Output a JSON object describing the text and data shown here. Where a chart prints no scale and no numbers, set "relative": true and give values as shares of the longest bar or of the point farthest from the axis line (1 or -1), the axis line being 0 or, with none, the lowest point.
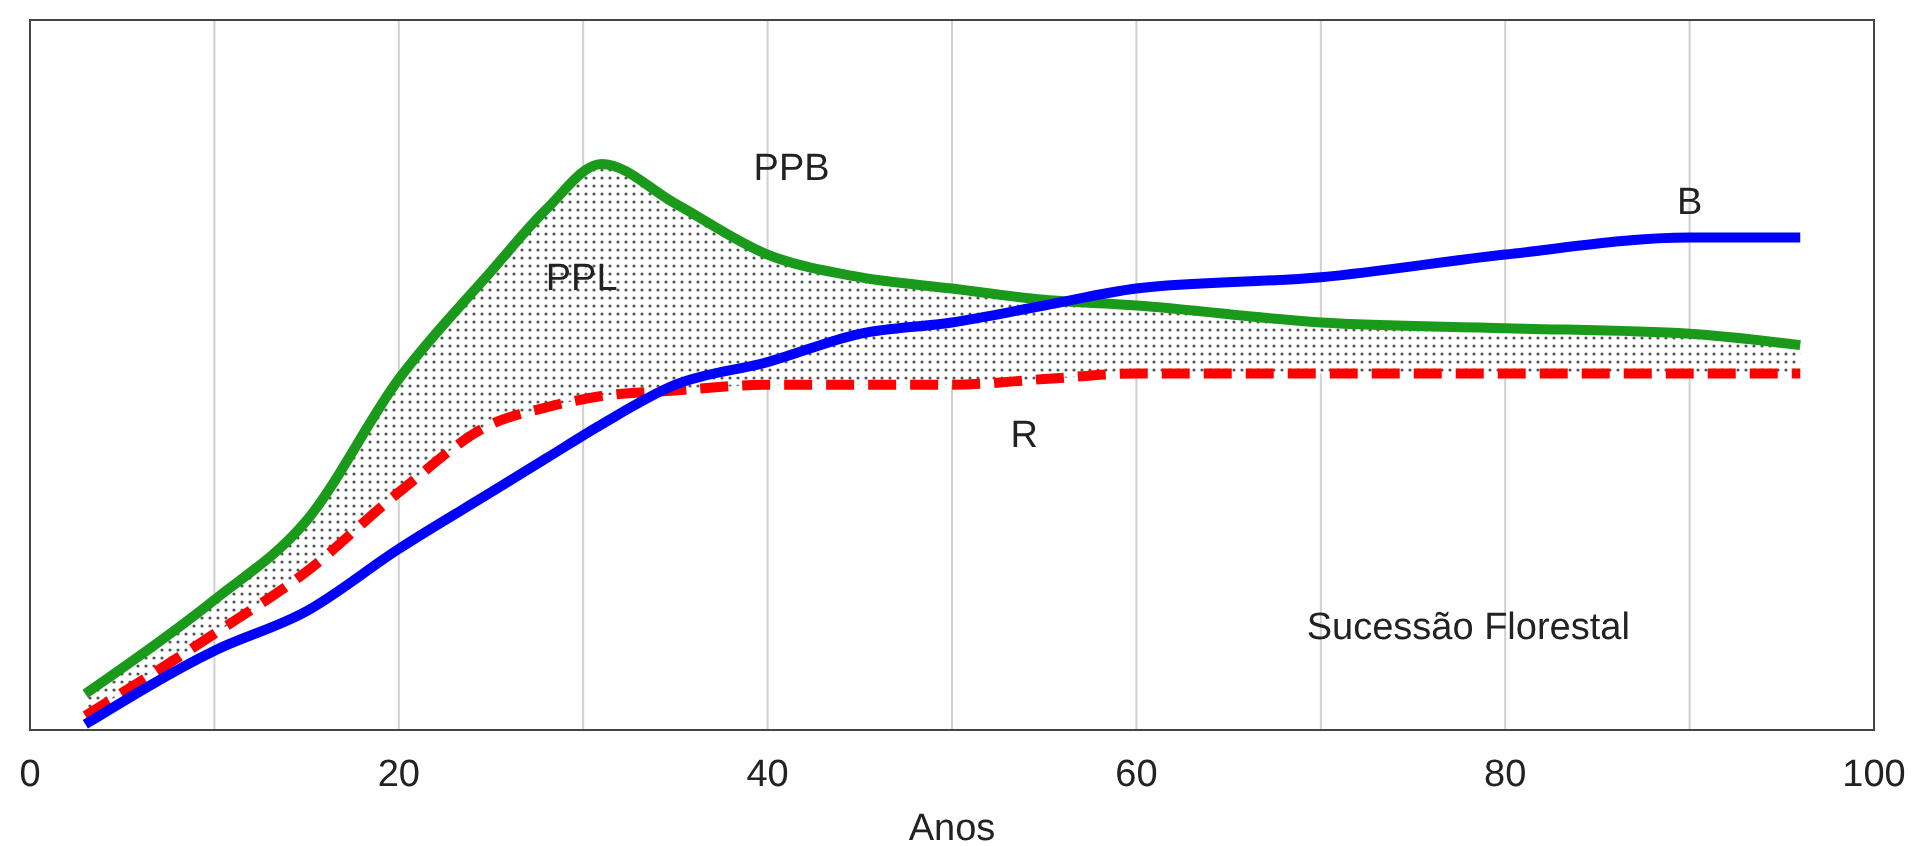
{
  "chart_data": {
    "type": "line",
    "relative": true,
    "xlabel": "Anos",
    "x": [
      3,
      10,
      15,
      20,
      25,
      28,
      31,
      35,
      40,
      45,
      50,
      55,
      60,
      70,
      80,
      90,
      96
    ],
    "xlim": [
      0,
      100
    ],
    "xticks": [
      0,
      {
        "value": 10,
        "label": null
      },
      20,
      {
        "value": 30,
        "label": null
      },
      40,
      {
        "value": 50,
        "label": null
      },
      60,
      {
        "value": 70,
        "label": null
      },
      80,
      {
        "value": 90,
        "label": null
      },
      100
    ],
    "grid": "x",
    "series": [
      {
        "name": "R",
        "color": "#ff0000",
        "line_style": "dashed",
        "values": [
          0.025,
          0.17,
          0.28,
          0.42,
          0.54,
          0.57,
          0.59,
          0.6,
          0.61,
          0.61,
          0.61,
          0.62,
          0.63,
          0.63,
          0.63,
          0.63,
          0.63
        ]
      },
      {
        "name": "PPB",
        "color": "#1a9a1a",
        "line_style": "solid",
        "values": [
          0.064,
          0.23,
          0.37,
          0.62,
          0.81,
          0.92,
          1,
          0.93,
          0.84,
          0.8,
          0.78,
          0.76,
          0.75,
          0.72,
          0.71,
          0.7,
          0.68
        ],
        "lower": [
          0.025,
          0.17,
          0.28,
          0.42,
          0.54,
          0.57,
          0.59,
          0.6,
          0.61,
          0.61,
          0.61,
          0.62,
          0.63,
          0.63,
          0.63,
          0.63,
          0.63
        ],
        "upper": [
          0.064,
          0.23,
          0.37,
          0.62,
          0.81,
          0.92,
          1,
          0.93,
          0.84,
          0.8,
          0.78,
          0.76,
          0.75,
          0.72,
          0.71,
          0.7,
          0.68
        ]
      },
      {
        "name": "B",
        "color": "#0000ff",
        "line_style": "solid",
        "values": [
          0.01,
          0.14,
          0.21,
          0.32,
          0.42,
          0.48,
          0.54,
          0.61,
          0.65,
          0.7,
          0.72,
          0.75,
          0.78,
          0.8,
          0.84,
          0.87,
          0.87
        ]
      }
    ],
    "annotations": [
      "PPL",
      "Sucessão Florestal"
    ]
  }
}
